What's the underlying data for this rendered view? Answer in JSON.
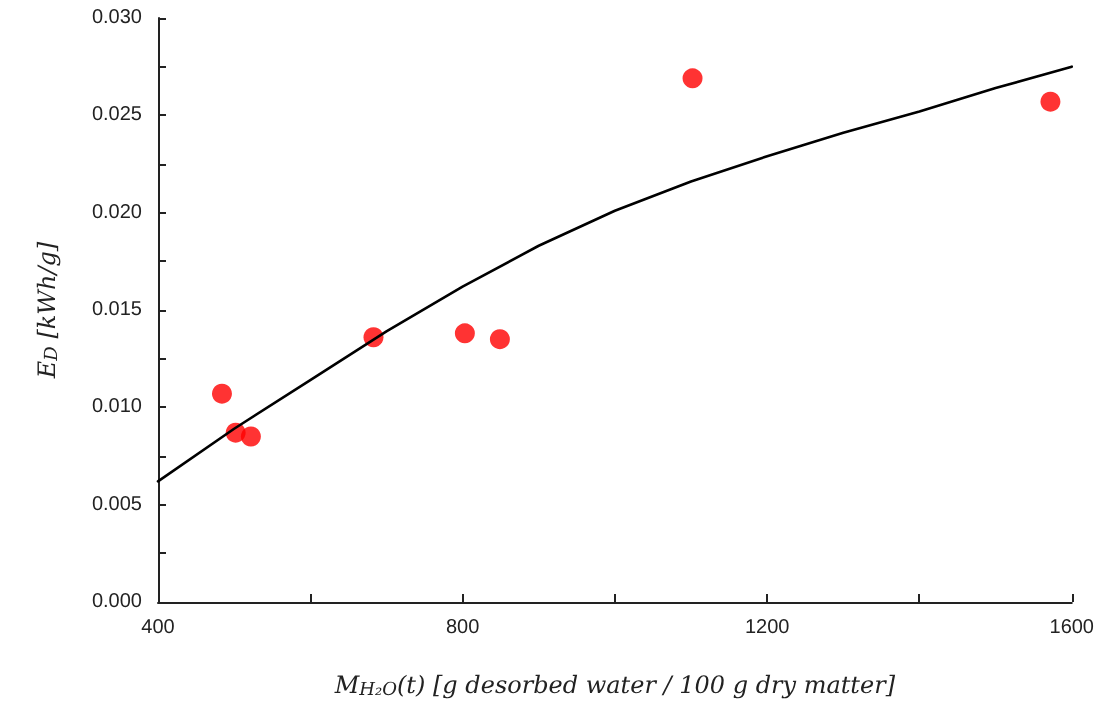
{
  "chart_data": {
    "type": "scatter",
    "xlabel": "M$_{H₂O}$(t) [g desorbed water / 100 g dry matter]",
    "ylabel": "E$_{D}$ [kWh/g]",
    "xlim": [
      400,
      1600
    ],
    "xticks": [
      400,
      {
        "value": 600,
        "label": null
      },
      800,
      {
        "value": 1000,
        "label": null
      },
      1200,
      {
        "value": 1400,
        "label": null
      },
      1600
    ],
    "ylim": [
      0,
      0.03
    ],
    "yticks": [
      {
        "value": 0,
        "label": "0.000"
      },
      {
        "value": 0.0025,
        "label": null
      },
      {
        "value": 0.005,
        "label": "0.005"
      },
      {
        "value": 0.0075,
        "label": null
      },
      {
        "value": 0.01,
        "label": "0.010"
      },
      {
        "value": 0.0125,
        "label": null
      },
      {
        "value": 0.015,
        "label": "0.015"
      },
      {
        "value": 0.0175,
        "label": null
      },
      {
        "value": 0.02,
        "label": "0.020"
      },
      {
        "value": 0.0225,
        "label": null
      },
      {
        "value": 0.025,
        "label": "0.025"
      },
      {
        "value": 0.0275,
        "label": null
      },
      {
        "value": 0.03,
        "label": "0.030"
      }
    ],
    "series": [
      {
        "color": "#ff0000",
        "marker": "circle",
        "x": [
          484,
          502,
          522,
          683,
          803,
          849,
          1102,
          1572
        ],
        "values": [
          0.0107,
          0.0087,
          0.0085,
          0.0136,
          0.0138,
          0.0135,
          0.0269,
          0.0257
        ]
      },
      {
        "type": "line",
        "color": "#000000",
        "marker": "none",
        "line_style": "solid",
        "x": [
          400,
          500,
          600,
          700,
          800,
          900,
          1000,
          1100,
          1200,
          1300,
          1400,
          1500,
          1600
        ],
        "values": [
          0.0062,
          0.0089,
          0.0114,
          0.0139,
          0.0162,
          0.0183,
          0.0201,
          0.0216,
          0.0229,
          0.0241,
          0.0252,
          0.0264,
          0.0275
        ]
      }
    ]
  }
}
